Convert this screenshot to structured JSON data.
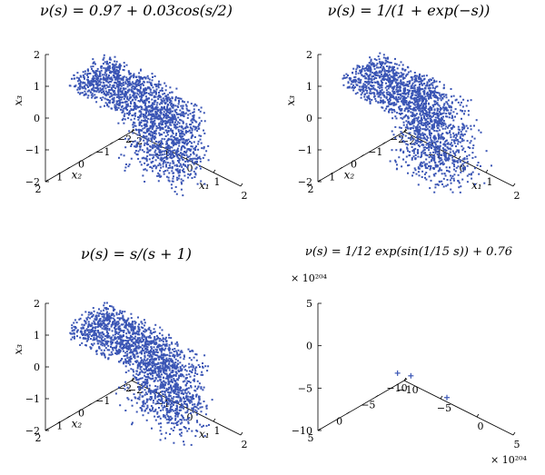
{
  "chart_data": [
    {
      "type": "scatter",
      "title": "ν(s) = 0.97 + 0.03cos(s/2)",
      "axes": {
        "x": "x1",
        "y": "x2",
        "z": "x3"
      },
      "axis_labels": {
        "x": "x₁",
        "y": "x₂",
        "z": "x₃"
      },
      "xlim": [
        -2,
        2
      ],
      "ylim": [
        -2,
        2
      ],
      "zlim": [
        -2,
        2
      ],
      "xticks": [
        -2,
        -1,
        0,
        1,
        2
      ],
      "yticks": [
        -2,
        -1,
        0,
        1,
        2
      ],
      "zticks": [
        -2,
        -1,
        0,
        1,
        2
      ],
      "xtick_labels": [
        "−2",
        "−1",
        "0",
        "1",
        "2"
      ],
      "ytick_labels": [
        "−2",
        "−1",
        "0",
        "1",
        "2"
      ],
      "ztick_labels": [
        "−2",
        "−1",
        "0",
        "1",
        "2"
      ],
      "point_color": "#3a55b5",
      "description_series": "point cloud on folded sheet"
    },
    {
      "type": "scatter",
      "title": "ν(s) = 1/(1 + exp(−s))",
      "axis_labels": {
        "x": "x₁",
        "y": "x₂",
        "z": "x₃"
      },
      "xlim": [
        -2,
        2
      ],
      "ylim": [
        -2,
        2
      ],
      "zlim": [
        -2,
        2
      ],
      "xtick_labels": [
        "−2",
        "−1",
        "0",
        "1",
        "2"
      ],
      "ytick_labels": [
        "−2",
        "−1",
        "0",
        "1",
        "2"
      ],
      "ztick_labels": [
        "−2",
        "−1",
        "0",
        "1",
        "2"
      ],
      "point_color": "#3a55b5"
    },
    {
      "type": "scatter",
      "title": "ν(s) = s/(s + 1)",
      "axis_labels": {
        "x": "x₁",
        "y": "x₂",
        "z": "x₃"
      },
      "xlim": [
        -2,
        2
      ],
      "ylim": [
        -2,
        2
      ],
      "zlim": [
        -2,
        2
      ],
      "xtick_labels": [
        "−2",
        "−1",
        "0",
        "1",
        "2"
      ],
      "ytick_labels": [
        "−2",
        "−1",
        "0",
        "1",
        "2"
      ],
      "ztick_labels": [
        "−2",
        "−1",
        "0",
        "1",
        "2"
      ],
      "point_color": "#3a55b5"
    },
    {
      "type": "scatter",
      "title": "ν(s) = 1/12 exp(sin(1/15 s)) + 0.76",
      "scale_label": "× 10²⁰⁴",
      "xlim": [
        -10,
        5
      ],
      "ylim": [
        -10,
        5
      ],
      "zlim": [
        -10,
        5
      ],
      "xtick_labels": [
        "−10",
        "−5",
        "0",
        "5"
      ],
      "ytick_labels": [
        "−10",
        "−5",
        "0",
        "5"
      ],
      "ztick_labels": [
        "−10",
        "−5",
        "0",
        "5"
      ],
      "points": [
        {
          "x": -3,
          "y": 0,
          "z": -2.2
        },
        {
          "x": 2,
          "y": 4,
          "z": 1.2
        },
        {
          "x": 3,
          "y": -1,
          "z": -2.9
        }
      ],
      "point_color": "#3a55b5"
    }
  ]
}
